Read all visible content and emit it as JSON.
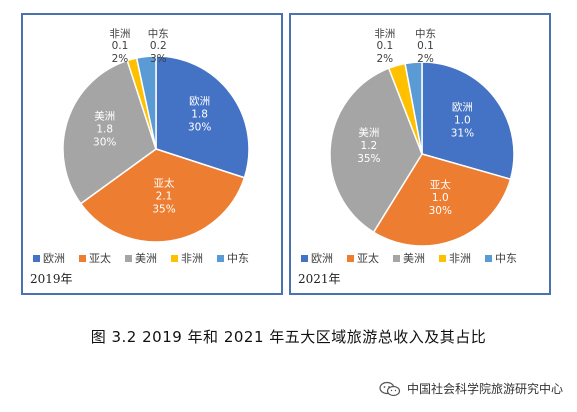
{
  "chart_data": [
    {
      "type": "pie",
      "panel_label": "2019年",
      "categories": [
        "欧洲",
        "亚太",
        "美洲",
        "非洲",
        "中东"
      ],
      "values": [
        1.8,
        2.1,
        1.8,
        0.1,
        0.2
      ],
      "percent_labels": [
        "30%",
        "35%",
        "30%",
        "2%",
        "3%"
      ],
      "value_labels": [
        "1.8",
        "2.1",
        "1.8",
        "0.1",
        "0.2"
      ],
      "colors": [
        "#4472c4",
        "#ed7d31",
        "#a5a5a5",
        "#ffc000",
        "#5b9bd5"
      ],
      "legend": "bottom"
    },
    {
      "type": "pie",
      "panel_label": "2021年",
      "categories": [
        "欧洲",
        "亚太",
        "美洲",
        "非洲",
        "中东"
      ],
      "values": [
        1.0,
        1.0,
        1.2,
        0.1,
        0.1
      ],
      "percent_labels": [
        "31%",
        "30%",
        "35%",
        "2%",
        "2%"
      ],
      "value_labels": [
        "1.0",
        "1.0",
        "1.2",
        "0.1",
        "0.1"
      ],
      "colors": [
        "#4472c4",
        "#ed7d31",
        "#a5a5a5",
        "#ffc000",
        "#5b9bd5"
      ],
      "legend": "bottom"
    }
  ],
  "caption": "图 3.2   2019 年和 2021 年五大区域旅游总收入及其占比",
  "watermark": "中国社会科学院旅游研究中心"
}
